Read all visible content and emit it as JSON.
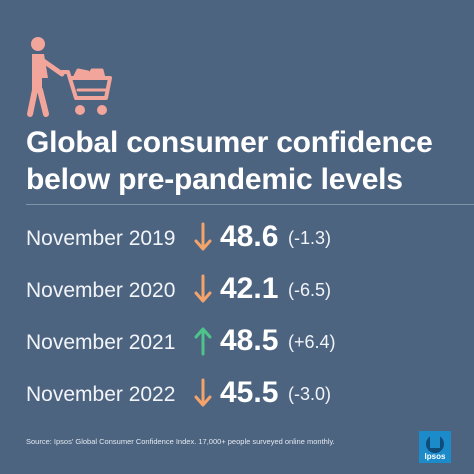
{
  "title_line1": "Global consumer confidence",
  "title_line2": "below pre-pandemic levels",
  "rows": [
    {
      "label": "November 2019",
      "direction": "down",
      "value": "48.6",
      "change": "(-1.3)"
    },
    {
      "label": "November 2020",
      "direction": "down",
      "value": "42.1",
      "change": "(-6.5)"
    },
    {
      "label": "November 2021",
      "direction": "up",
      "value": "48.5",
      "change": "(+6.4)"
    },
    {
      "label": "November 2022",
      "direction": "down",
      "value": "45.5",
      "change": "(-3.0)"
    }
  ],
  "source": "Source: Ipsos' Global Consumer Confidence Index. 17,000+ people surveyed online monthly.",
  "logo_text": "Ipsos",
  "icons": {
    "header": "shopper-with-cart-icon",
    "down": "arrow-down-icon",
    "up": "arrow-up-icon"
  },
  "colors": {
    "background": "#4d6480",
    "down_arrow": "#f4a46a",
    "up_arrow": "#4ec48a",
    "icon": "#f2a59a",
    "logo": "#1c8bc9"
  }
}
